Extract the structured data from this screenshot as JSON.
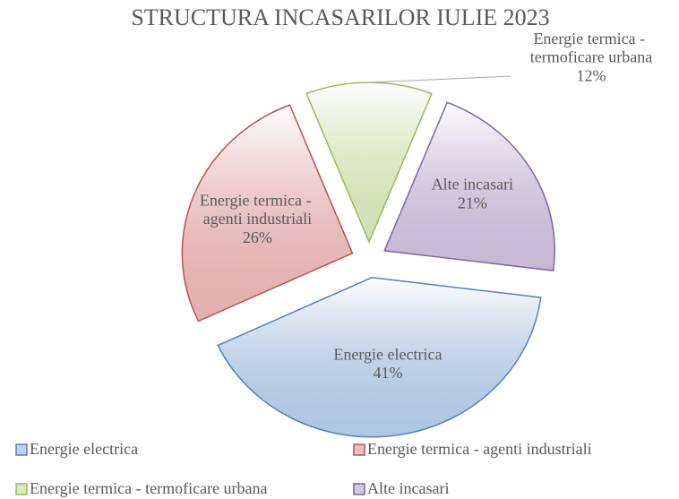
{
  "chart_data": {
    "type": "pie",
    "title": "STRUCTURA INCASARILOR IULIE 2023",
    "categories": [
      "Energie electrica",
      "Energie termica - agenti industriali",
      "Energie termica - termoficare urbana",
      "Alte incasari"
    ],
    "values": [
      41,
      26,
      12,
      21
    ],
    "value_labels": [
      "41%",
      "26%",
      "12%",
      "21%"
    ],
    "colors": [
      "#4f81bd",
      "#c0504d",
      "#9bbb59",
      "#8064a2"
    ],
    "legend": "bottom"
  }
}
